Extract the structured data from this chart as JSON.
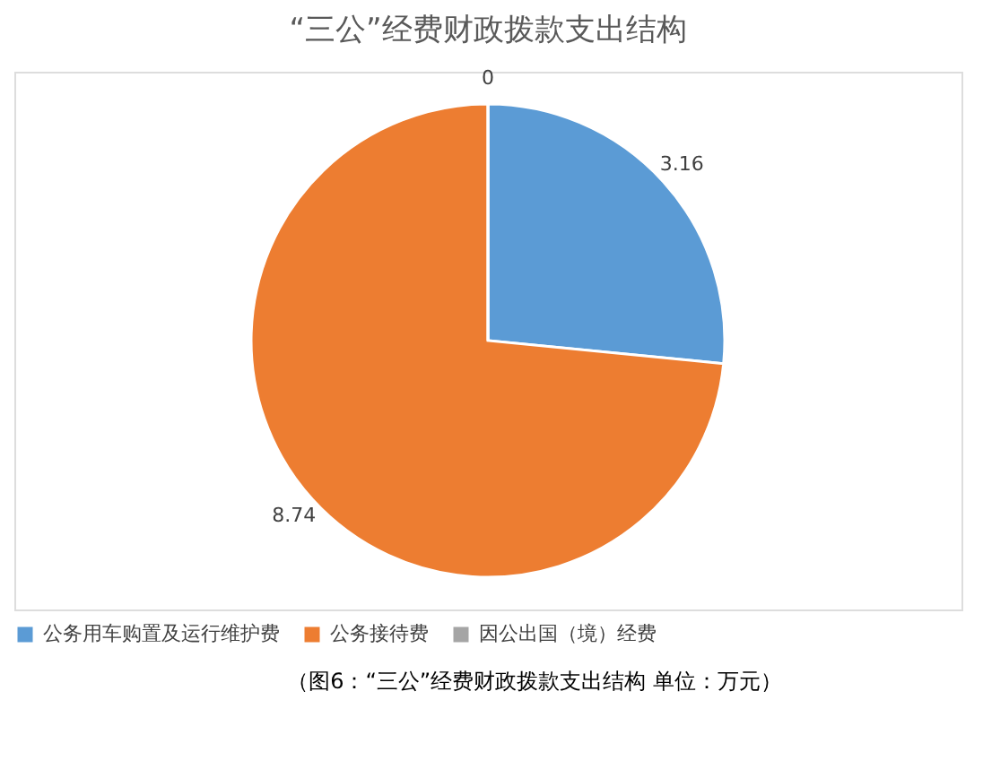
{
  "chart_data": {
    "type": "pie",
    "title": "“三公”经费财政拨款支出结构",
    "categories": [
      "公务用车购置及运行维护费",
      "公务接待费",
      "因公出国（境）经费"
    ],
    "values": [
      3.16,
      8.74,
      0
    ],
    "colors": [
      "#5b9bd5",
      "#ed7d31",
      "#a5a5a5"
    ],
    "value_labels": [
      "3.16",
      "8.74",
      "0"
    ],
    "legend": "bottom",
    "annotations": [
      "（图6：“三公”经费财政拨款支出结构   单位：万元）"
    ]
  }
}
